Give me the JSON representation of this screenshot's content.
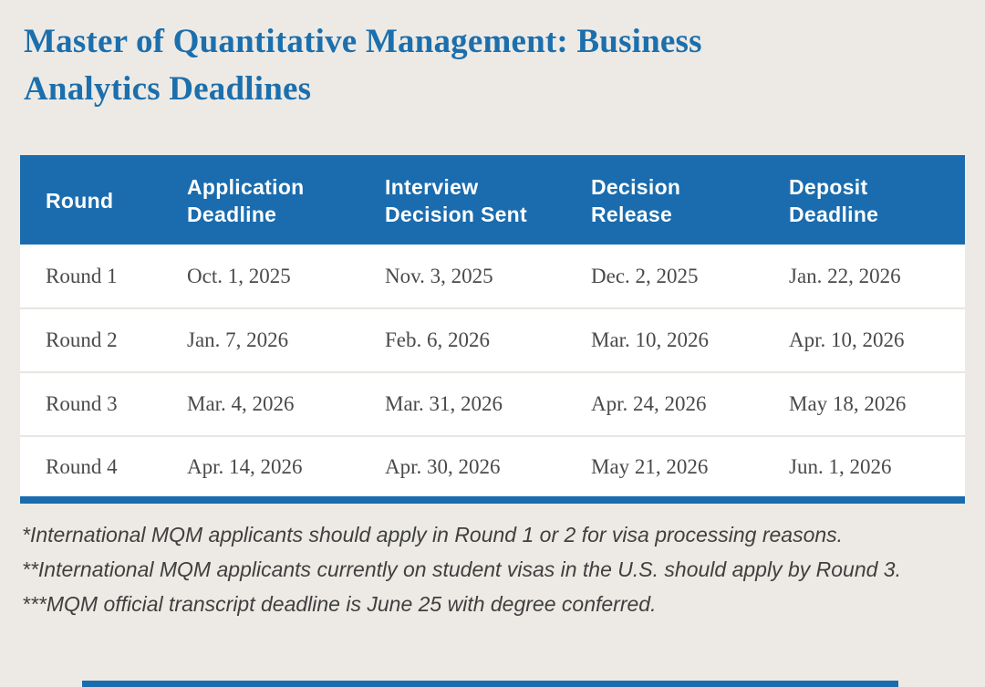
{
  "page": {
    "background_color": "#edeae5",
    "accent_color": "#1a6cae",
    "title_color": "#1c6fad"
  },
  "title": {
    "text": "Master of Quantitative Management: Business Analytics Deadlines"
  },
  "table": {
    "header_bg": "#1a6cae",
    "header_text_color": "#ffffff",
    "columns": [
      "Round",
      "Application Deadline",
      "Interview Decision Sent",
      "Decision Release",
      "Deposit Deadline"
    ],
    "rows": [
      [
        "Round 1",
        "Oct. 1, 2025",
        "Nov. 3, 2025",
        "Dec. 2, 2025",
        "Jan. 22, 2026"
      ],
      [
        "Round 2",
        "Jan. 7, 2026",
        "Feb. 6, 2026",
        "Mar. 10, 2026",
        "Apr. 10, 2026"
      ],
      [
        "Round 3",
        "Mar. 4, 2026",
        "Mar. 31, 2026",
        "Apr. 24, 2026",
        "May 18, 2026"
      ],
      [
        "Round 4",
        "Apr. 14, 2026",
        "Apr. 30, 2026",
        "May 21, 2026",
        "Jun. 1, 2026"
      ]
    ]
  },
  "footnotes": [
    "*International MQM applicants should apply in Round 1 or 2 for visa processing reasons.",
    "**International MQM applicants currently on student visas in the U.S. should apply by Round 3.",
    "***MQM official transcript deadline is June 25 with degree conferred."
  ]
}
